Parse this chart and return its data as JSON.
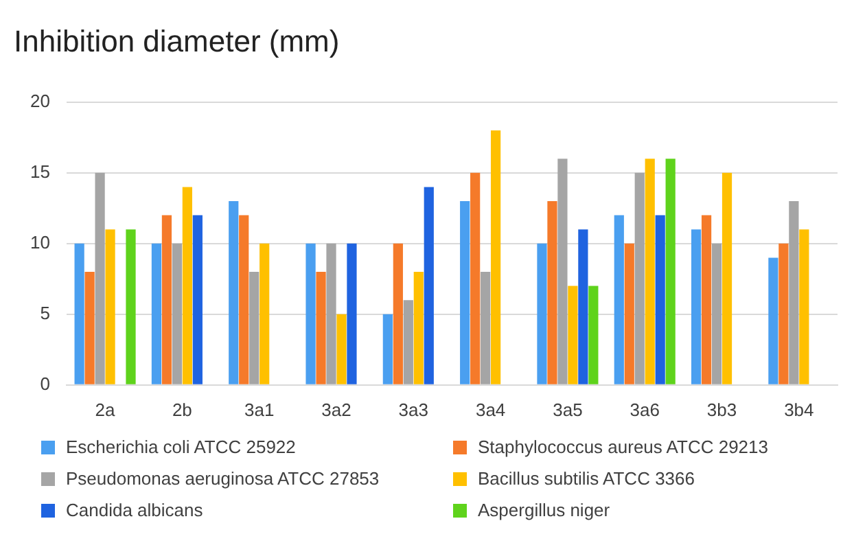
{
  "chart_data": {
    "type": "bar",
    "title": "Inhibition diameter (mm)",
    "categories": [
      "2a",
      "2b",
      "3a1",
      "3a2",
      "3a3",
      "3a4",
      "3a5",
      "3a6",
      "3b3",
      "3b4"
    ],
    "series": [
      {
        "name": "Escherichia coli ATCC 25922",
        "color": "#4a9ff0",
        "values": [
          10,
          10,
          13,
          10,
          5,
          13,
          10,
          12,
          11,
          9
        ]
      },
      {
        "name": "Staphylococcus aureus ATCC 29213",
        "color": "#f57a2a",
        "values": [
          8,
          12,
          12,
          8,
          10,
          15,
          13,
          10,
          12,
          10
        ]
      },
      {
        "name": "Pseudomonas aeruginosa ATCC 27853",
        "color": "#a5a5a5",
        "values": [
          15,
          10,
          8,
          10,
          6,
          8,
          16,
          15,
          10,
          13
        ]
      },
      {
        "name": "Bacillus subtilis ATCC 3366",
        "color": "#ffc000",
        "values": [
          11,
          14,
          10,
          5,
          8,
          18,
          7,
          16,
          15,
          11
        ]
      },
      {
        "name": "Candida albicans",
        "color": "#1f63e0",
        "values": [
          null,
          12,
          null,
          10,
          14,
          null,
          11,
          12,
          null,
          null
        ]
      },
      {
        "name": "Aspergillus niger",
        "color": "#5fd31c",
        "values": [
          11,
          null,
          null,
          null,
          null,
          null,
          7,
          16,
          null,
          null
        ]
      }
    ],
    "ylim": [
      0,
      20
    ],
    "yticks": [
      0,
      5,
      10,
      15,
      20
    ],
    "grid": "y",
    "legend": "bottom"
  }
}
